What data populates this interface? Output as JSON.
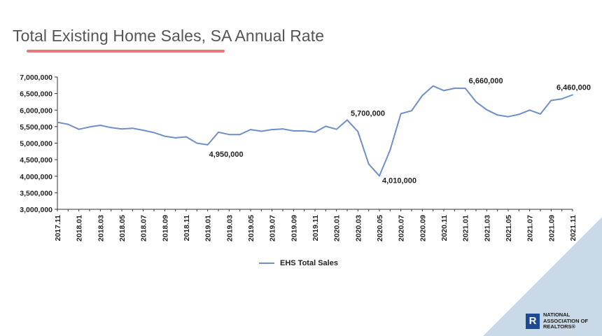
{
  "header": {
    "title": "Total Existing Home Sales, SA Annual Rate"
  },
  "logo": {
    "line1": "NATIONAL",
    "line2": "ASSOCIATION OF",
    "line3": "REALTORS®",
    "mark": "R"
  },
  "chart_data": {
    "type": "line",
    "title": "Total Existing Home Sales, SA Annual Rate",
    "xlabel": "",
    "ylabel": "",
    "ylim": [
      3000000,
      7000000
    ],
    "ytick_labels": [
      "3,000,000",
      "3,500,000",
      "4,000,000",
      "4,500,000",
      "5,000,000",
      "5,500,000",
      "6,000,000",
      "6,500,000",
      "7,000,000"
    ],
    "x": [
      "2017.11",
      "2017.12",
      "2018.01",
      "2018.02",
      "2018.03",
      "2018.04",
      "2018.05",
      "2018.06",
      "2018.07",
      "2018.08",
      "2018.09",
      "2018.10",
      "2018.11",
      "2018.12",
      "2019.01",
      "2019.02",
      "2019.03",
      "2019.04",
      "2019.05",
      "2019.06",
      "2019.07",
      "2019.08",
      "2019.09",
      "2019.10",
      "2019.11",
      "2019.12",
      "2020.01",
      "2020.02",
      "2020.03",
      "2020.04",
      "2020.05",
      "2020.06",
      "2020.07",
      "2020.08",
      "2020.09",
      "2020.10",
      "2020.11",
      "2020.12",
      "2021.01",
      "2021.02",
      "2021.03",
      "2021.04",
      "2021.05",
      "2021.06",
      "2021.07",
      "2021.08",
      "2021.09",
      "2021.10",
      "2021.11"
    ],
    "x_tick_labels": [
      "2017.11",
      "2018.01",
      "2018.03",
      "2018.05",
      "2018.07",
      "2018.09",
      "2018.11",
      "2019.01",
      "2019.03",
      "2019.05",
      "2019.07",
      "2019.09",
      "2019.11",
      "2020.01",
      "2020.03",
      "2020.05",
      "2020.07",
      "2020.09",
      "2020.11",
      "2021.01",
      "2021.03",
      "2021.05",
      "2021.07",
      "2021.09",
      "2021.11"
    ],
    "series": [
      {
        "name": "EHS Total Sales",
        "color": "#6f8fc9",
        "values": [
          5630000,
          5570000,
          5420000,
          5490000,
          5540000,
          5470000,
          5430000,
          5450000,
          5390000,
          5320000,
          5210000,
          5160000,
          5190000,
          5000000,
          4950000,
          5330000,
          5260000,
          5260000,
          5410000,
          5360000,
          5410000,
          5430000,
          5370000,
          5370000,
          5330000,
          5510000,
          5420000,
          5700000,
          5350000,
          4370000,
          4010000,
          4790000,
          5890000,
          5980000,
          6440000,
          6730000,
          6590000,
          6660000,
          6660000,
          6250000,
          6010000,
          5850000,
          5800000,
          5870000,
          6000000,
          5880000,
          6290000,
          6340000,
          6460000
        ]
      }
    ],
    "annotations": [
      {
        "x": "2019.01",
        "label": "4,950,000"
      },
      {
        "x": "2020.02",
        "label": "5,700,000"
      },
      {
        "x": "2020.05",
        "label": "4,010,000"
      },
      {
        "x": "2021.01",
        "label": "6,660,000"
      },
      {
        "x": "2021.11",
        "label": "6,460,000"
      }
    ],
    "legend": {
      "position": "bottom-center",
      "label": "EHS Total Sales"
    },
    "grid": false
  }
}
